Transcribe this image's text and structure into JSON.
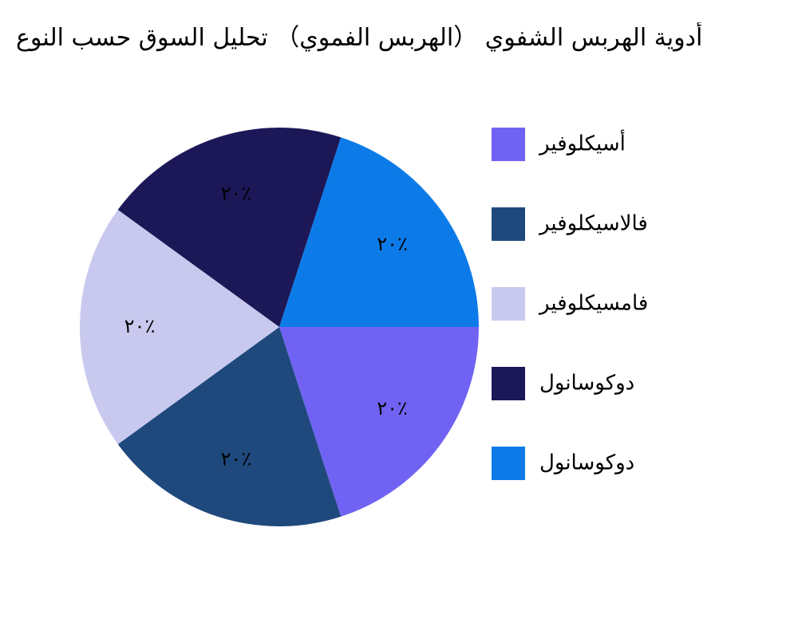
{
  "chart_data": {
    "type": "pie",
    "title": "أدوية الهربس الشفوي （الهربس الفموي） تحليل السوق حسب النوع",
    "categories": [
      "أسيكلوفير",
      "فالاسيكلوفير",
      "فامسيكلوفير",
      "دوكوسانول",
      "دوكوسانول"
    ],
    "values": [
      20,
      20,
      20,
      20,
      20
    ],
    "value_labels": [
      "٢٠٪",
      "٢٠٪",
      "٢٠٪",
      "٢٠٪",
      "٢٠٪"
    ],
    "colors": [
      "#7063f3",
      "#1f497d",
      "#c9c9ef",
      "#1c1858",
      "#0c7be8"
    ],
    "legend": "right"
  }
}
